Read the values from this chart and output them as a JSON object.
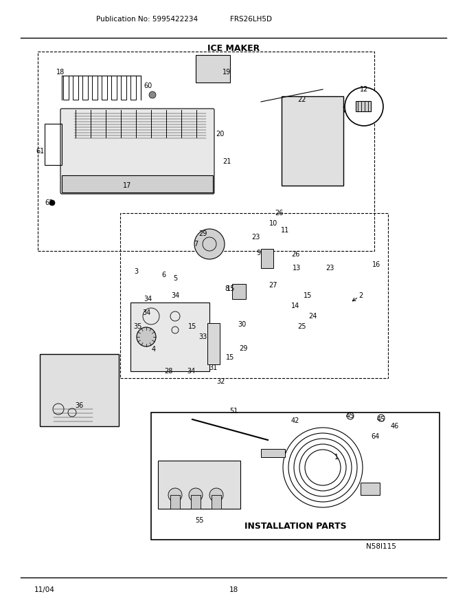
{
  "title": "ICE MAKER",
  "pub_no": "Publication No: 5995422234",
  "model": "FRS26LH5D",
  "date": "11/04",
  "page": "18",
  "diagram_id": "N58I115",
  "install_parts_label": "INSTALLATION PARTS",
  "bg_color": "#ffffff",
  "line_color": "#000000",
  "fig_width": 6.8,
  "fig_height": 8.8,
  "dpi": 100
}
